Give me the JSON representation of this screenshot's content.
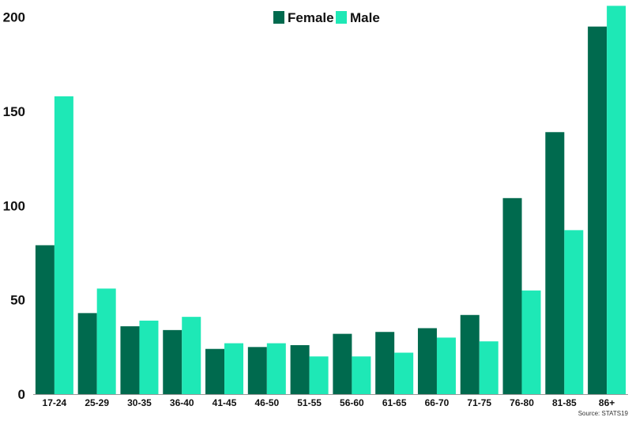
{
  "chart_data": {
    "type": "bar",
    "categories": [
      "17-24",
      "25-29",
      "30-35",
      "36-40",
      "41-45",
      "46-50",
      "51-55",
      "56-60",
      "61-65",
      "66-70",
      "71-75",
      "76-80",
      "81-85",
      "86+"
    ],
    "series": [
      {
        "name": "Female",
        "color": "#006a4e",
        "values": [
          79,
          43,
          36,
          34,
          24,
          25,
          26,
          32,
          33,
          35,
          42,
          104,
          139,
          195
        ]
      },
      {
        "name": "Male",
        "color": "#1ee8b6",
        "values": [
          158,
          56,
          39,
          41,
          27,
          27,
          20,
          20,
          22,
          30,
          28,
          55,
          87,
          206
        ]
      }
    ],
    "yticks": [
      0,
      50,
      100,
      150,
      200
    ],
    "ylim": [
      0,
      207
    ],
    "xlabel": "",
    "ylabel": "",
    "grid": false,
    "legend_position": "top-center",
    "source": "Source: STATS19"
  }
}
